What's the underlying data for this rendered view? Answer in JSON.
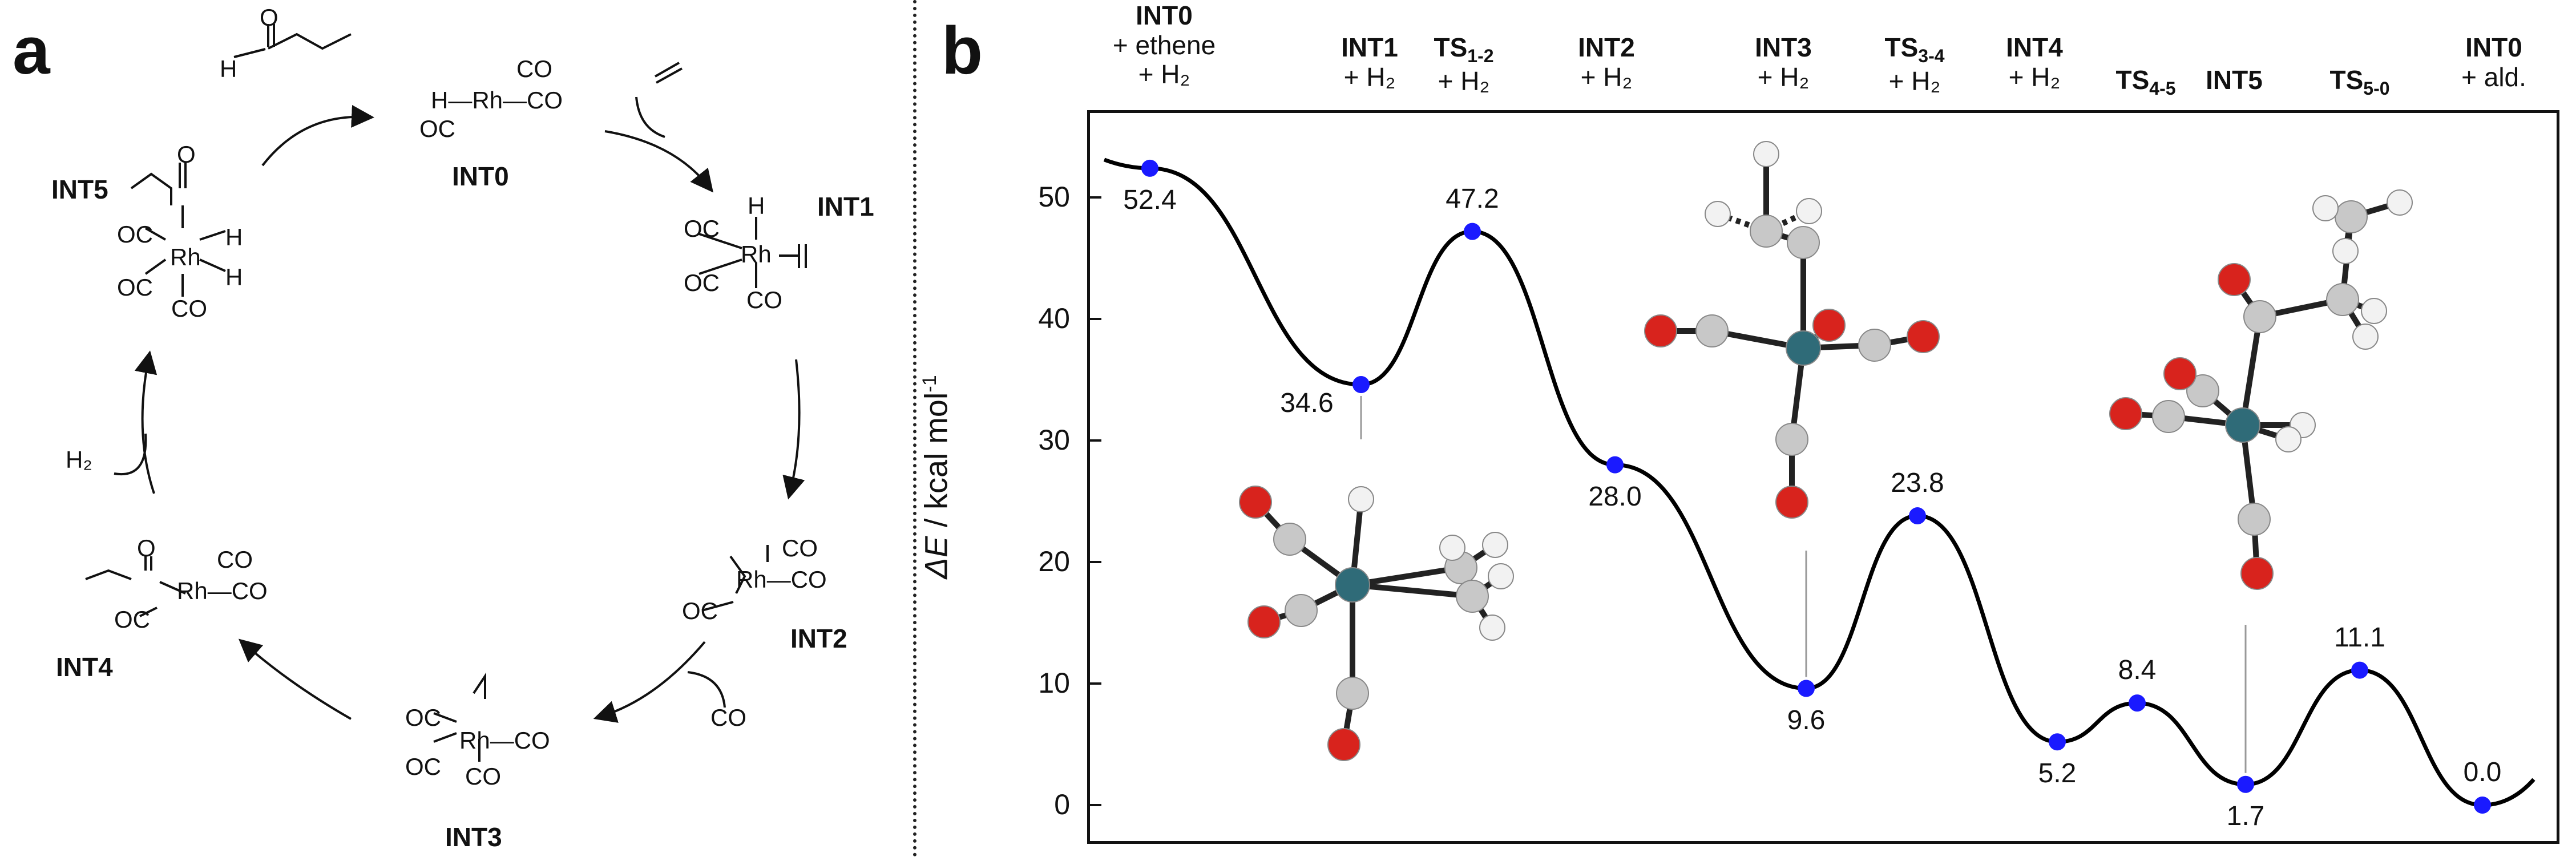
{
  "panel_a": {
    "letter": "a",
    "labels": {
      "int0": "INT0",
      "int1": "INT1",
      "int2": "INT2",
      "int3": "INT3",
      "int4": "INT4",
      "int5": "INT5"
    },
    "reagents": {
      "h2": "H₂",
      "co": "CO"
    },
    "structures": {
      "aldehyde_h": "H",
      "aldehyde_o": "O",
      "int0_top": "CO",
      "int0_mid": "H—Rh—CO",
      "int0_bottom": "OC",
      "int1_h": "H",
      "int1_oc1": "OC",
      "int1_rh": "Rh",
      "int1_oc2": "OC",
      "int1_co": "CO",
      "int2_co1": "CO",
      "int2_rh": "Rh—CO",
      "int2_oc": "OC",
      "int3_oc1": "OC",
      "int3_rh": "Rh—CO",
      "int3_oc2": "OC",
      "int3_co": "CO",
      "int4_o": "O",
      "int4_co1": "CO",
      "int4_rh": "Rh—CO",
      "int4_oc": "OC",
      "int5_o": "O",
      "int5_oc1": "OC",
      "int5_rh": "Rh",
      "int5_h1": "H",
      "int5_h2": "H",
      "int5_oc2": "OC",
      "int5_co": "CO"
    }
  },
  "panel_b": {
    "letter": "b",
    "columns": [
      {
        "name": "INT0",
        "sub": "",
        "extra": [
          "+ ethene",
          "+ H₂"
        ]
      },
      {
        "name": "INT1",
        "sub": "",
        "extra": [
          "+ H₂"
        ]
      },
      {
        "name": "TS",
        "sub": "1-2",
        "extra": [
          "+ H₂"
        ]
      },
      {
        "name": "INT2",
        "sub": "",
        "extra": [
          "+ H₂"
        ]
      },
      {
        "name": "INT3",
        "sub": "",
        "extra": [
          "+ H₂"
        ]
      },
      {
        "name": "TS",
        "sub": "3-4",
        "extra": [
          "+ H₂"
        ]
      },
      {
        "name": "INT4",
        "sub": "",
        "extra": [
          "+ H₂"
        ]
      },
      {
        "name": "TS",
        "sub": "4-5",
        "extra": []
      },
      {
        "name": "INT5",
        "sub": "",
        "extra": []
      },
      {
        "name": "TS",
        "sub": "5-0",
        "extra": []
      },
      {
        "name": "INT0",
        "sub": "",
        "extra": [
          "+ ald."
        ]
      }
    ],
    "ylabel_delta": "ΔE",
    "ylabel_rest": " / kcal mol",
    "ylabel_sup": "-1",
    "colors": {
      "point": "#1a1aff",
      "curve": "#000000",
      "rh": "#2f6b78",
      "o": "#d8231d",
      "c": "#c8c8c8",
      "h": "#f2f2f2"
    }
  },
  "chart_data": {
    "type": "line",
    "x": [
      "INT0 + ethene + H₂",
      "INT1 + H₂",
      "TS1-2 + H₂",
      "INT2 + H₂",
      "INT3 + H₂",
      "TS3-4 + H₂",
      "INT4 + H₂",
      "TS4-5",
      "INT5",
      "TS5-0",
      "INT0 + ald."
    ],
    "series": [
      {
        "values": [
          52.4,
          34.6,
          47.2,
          28.0,
          9.6,
          23.8,
          5.2,
          8.4,
          1.7,
          11.1,
          0.0
        ]
      }
    ],
    "value_labels": [
      "52.4",
      "34.6",
      "47.2",
      "28.0",
      "9.6",
      "23.8",
      "5.2",
      "8.4",
      "1.7",
      "11.1",
      "0.0"
    ],
    "ylabel": "ΔE / kcal mol-1",
    "ylim": [
      -2.5,
      57.5
    ],
    "yticks": [
      0,
      10,
      20,
      30,
      40,
      50
    ],
    "grid": false
  }
}
